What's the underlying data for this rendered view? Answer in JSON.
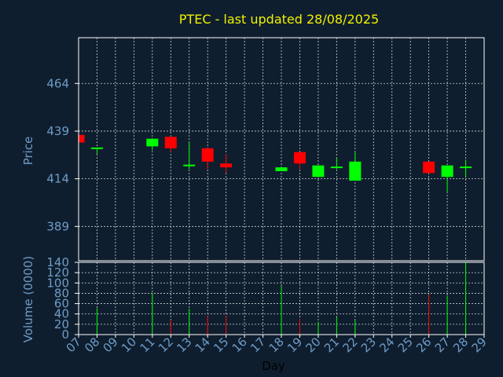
{
  "chart_data": [
    {
      "type": "candlestick",
      "title": "PTEC - last updated 28/08/2025",
      "ylabel": "Price",
      "yticks": [
        389,
        414,
        439,
        464
      ],
      "ylim": [
        371,
        488
      ],
      "grid": true,
      "colors": {
        "up": "#00ff00",
        "down": "#ff0000",
        "grid": "#ffffff",
        "frame": "#ffffff",
        "text": "#6e9cc8",
        "title": "#f0f000",
        "background": "#0f1e2e"
      },
      "candles": [
        {
          "day": "07",
          "open": 437,
          "high": 437,
          "low": 433,
          "close": 433
        },
        {
          "day": "08",
          "open": 430,
          "high": 430,
          "low": 427,
          "close": 430
        },
        {
          "day": "11",
          "open": 431,
          "high": 435,
          "low": 429,
          "close": 435
        },
        {
          "day": "12",
          "open": 436,
          "high": 436,
          "low": 428,
          "close": 430
        },
        {
          "day": "13",
          "open": 421,
          "high": 433,
          "low": 419,
          "close": 421
        },
        {
          "day": "14",
          "open": 430,
          "high": 430,
          "low": 419,
          "close": 423
        },
        {
          "day": "15",
          "open": 422,
          "high": 427,
          "low": 417,
          "close": 420
        },
        {
          "day": "18",
          "open": 418,
          "high": 420,
          "low": 418,
          "close": 420
        },
        {
          "day": "19",
          "open": 428,
          "high": 428,
          "low": 419,
          "close": 422
        },
        {
          "day": "20",
          "open": 415,
          "high": 421,
          "low": 415,
          "close": 421
        },
        {
          "day": "21",
          "open": 420,
          "high": 425,
          "low": 419,
          "close": 420
        },
        {
          "day": "22",
          "open": 413,
          "high": 428,
          "low": 413,
          "close": 423
        },
        {
          "day": "26",
          "open": 423,
          "high": 423,
          "low": 417,
          "close": 417
        },
        {
          "day": "27",
          "open": 415,
          "high": 421,
          "low": 407,
          "close": 421
        },
        {
          "day": "28",
          "open": 420,
          "high": 424,
          "low": 415,
          "close": 420
        }
      ]
    },
    {
      "type": "bar",
      "ylabel": "Volume (0000)",
      "xlabel": "Day",
      "ylim": [
        0,
        140
      ],
      "yticks": [
        0,
        20,
        40,
        60,
        80,
        100,
        120,
        140
      ],
      "xtick_labels": [
        "07",
        "08",
        "09",
        "10",
        "11",
        "12",
        "13",
        "14",
        "15",
        "16",
        "17",
        "18",
        "19",
        "20",
        "21",
        "22",
        "23",
        "24",
        "25",
        "26",
        "27",
        "28",
        "29"
      ],
      "grid": true,
      "volumes": [
        {
          "day": "08",
          "value": 51,
          "direction": "up"
        },
        {
          "day": "11",
          "value": 81,
          "direction": "up"
        },
        {
          "day": "12",
          "value": 28,
          "direction": "down"
        },
        {
          "day": "13",
          "value": 50,
          "direction": "up"
        },
        {
          "day": "14",
          "value": 36,
          "direction": "down"
        },
        {
          "day": "15",
          "value": 36,
          "direction": "down"
        },
        {
          "day": "18",
          "value": 95,
          "direction": "up"
        },
        {
          "day": "19",
          "value": 30,
          "direction": "down"
        },
        {
          "day": "20",
          "value": 25,
          "direction": "up"
        },
        {
          "day": "21",
          "value": 34,
          "direction": "up"
        },
        {
          "day": "22",
          "value": 28,
          "direction": "up"
        },
        {
          "day": "26",
          "value": 78,
          "direction": "down"
        },
        {
          "day": "27",
          "value": 75,
          "direction": "up"
        },
        {
          "day": "28",
          "value": 140,
          "direction": "up"
        }
      ]
    }
  ]
}
